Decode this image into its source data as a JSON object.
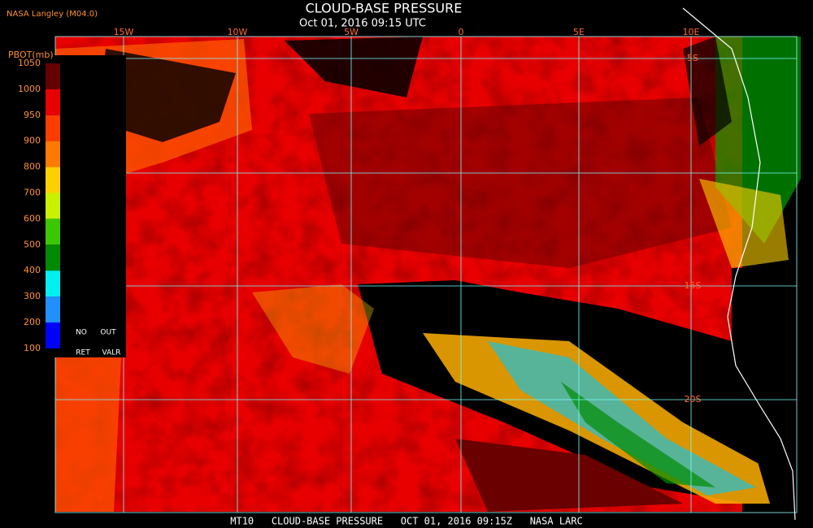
{
  "header": {
    "source": "NASA Langley (M04.0)",
    "title": "CLOUD-BASE PRESSURE",
    "subtitle": "Oct 01, 2016 09:15 UTC"
  },
  "colorbar": {
    "label": "PBOT(mb)",
    "ticks": [
      1050,
      1000,
      950,
      900,
      800,
      700,
      600,
      500,
      400,
      300,
      200,
      100
    ],
    "colors": [
      "#640000",
      "#e80000",
      "#ff3c00",
      "#ff7a00",
      "#ffd000",
      "#c8f000",
      "#3cc800",
      "#008a00",
      "#00f0f0",
      "#2090ff",
      "#0000ff",
      "#9040e0"
    ],
    "flags": [
      "NO",
      "OUT",
      "RET",
      "VALR"
    ]
  },
  "grid": {
    "longitudes": [
      "15W",
      "10W",
      "5W",
      "0",
      "5E",
      "10E"
    ],
    "latitudes": [
      "5S",
      "15S",
      "20S"
    ]
  },
  "footer": "MT10   CLOUD-BASE PRESSURE   OCT 01, 2016 09:15Z   NASA LARC"
}
